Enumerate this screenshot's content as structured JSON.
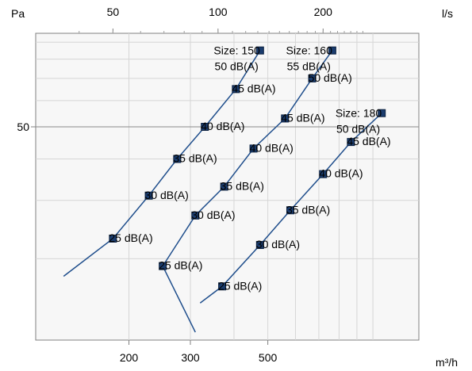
{
  "chart_data": {
    "type": "line",
    "x_scale": "log",
    "y_scale": "log",
    "x_bottom_unit": "m³/h",
    "x_top_unit": "l/s",
    "y_unit": "Pa",
    "x_bottom_ticks": [
      {
        "value": 200,
        "label": "200"
      },
      {
        "value": 300,
        "label": "300"
      },
      {
        "value": 500,
        "label": "500"
      }
    ],
    "x_top_ticks": [
      {
        "value": 50,
        "label": "50"
      },
      {
        "value": 100,
        "label": "100"
      },
      {
        "value": 200,
        "label": "200"
      }
    ],
    "y_ticks": [
      {
        "value": 50,
        "label": "50"
      }
    ],
    "grid": true,
    "series": [
      {
        "name": "Size: 150",
        "line_from": [
          130,
          17.7
        ],
        "points": [
          {
            "x": 180,
            "y": 23,
            "label": "25 dB(A)"
          },
          {
            "x": 228,
            "y": 31,
            "label": "30 dB(A)"
          },
          {
            "x": 275,
            "y": 40,
            "label": "35 dB(A)"
          },
          {
            "x": 330,
            "y": 50,
            "label": "40 dB(A)"
          },
          {
            "x": 405,
            "y": 65,
            "label": "45 dB(A)"
          },
          {
            "x": 475,
            "y": 85,
            "label": "50 dB(A)"
          }
        ]
      },
      {
        "name": "Size: 160",
        "line_from": [
          310,
          12
        ],
        "points": [
          {
            "x": 250,
            "y": 19,
            "label": "25 dB(A)"
          },
          {
            "x": 310,
            "y": 27,
            "label": "30 dB(A)"
          },
          {
            "x": 375,
            "y": 33,
            "label": "35 dB(A)"
          },
          {
            "x": 455,
            "y": 43,
            "label": "40 dB(A)"
          },
          {
            "x": 560,
            "y": 53,
            "label": "45 dB(A)"
          },
          {
            "x": 670,
            "y": 70,
            "label": "50 dB(A)"
          },
          {
            "x": 765,
            "y": 85,
            "label": "55 dB(A)"
          }
        ]
      },
      {
        "name": "Size: 180",
        "line_from": [
          320,
          14.7
        ],
        "points": [
          {
            "x": 370,
            "y": 16.5,
            "label": "25 dB(A)"
          },
          {
            "x": 475,
            "y": 22,
            "label": "30 dB(A)"
          },
          {
            "x": 580,
            "y": 28,
            "label": "35 dB(A)"
          },
          {
            "x": 720,
            "y": 36,
            "label": "40 dB(A)"
          },
          {
            "x": 865,
            "y": 45,
            "label": "45 dB(A)"
          },
          {
            "x": 1060,
            "y": 55,
            "label": "50 dB(A)"
          }
        ]
      }
    ]
  }
}
